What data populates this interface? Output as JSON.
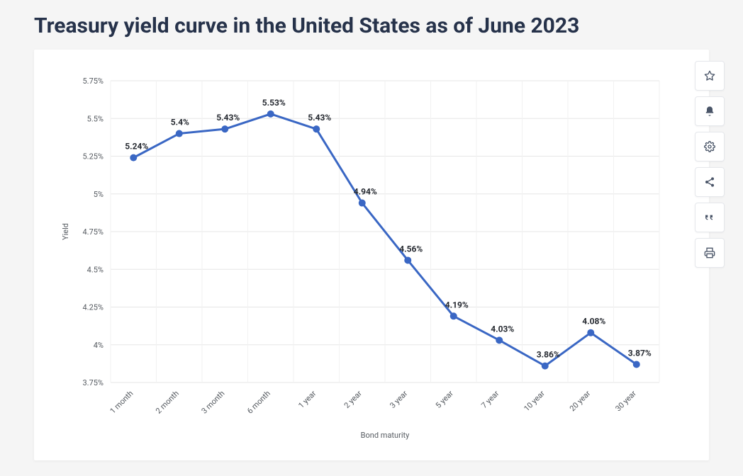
{
  "title": "Treasury yield curve in the United States as of June 2023",
  "chart": {
    "type": "line",
    "xlabel": "Bond maturity",
    "ylabel": "Yield",
    "categories": [
      "1 month",
      "2 month",
      "3 month",
      "6 month",
      "1 year",
      "2 year",
      "3 year",
      "5 year",
      "7 year",
      "10 year",
      "20 year",
      "30 year"
    ],
    "values": [
      5.24,
      5.4,
      5.43,
      5.53,
      5.43,
      4.94,
      4.56,
      4.19,
      4.03,
      3.86,
      4.08,
      3.87
    ],
    "value_labels": [
      "5.24%",
      "5.4%",
      "5.43%",
      "5.53%",
      "5.43%",
      "4.94%",
      "4.56%",
      "4.19%",
      "4.03%",
      "3.86%",
      "4.08%",
      "3.87%"
    ],
    "ylim": [
      3.75,
      5.75
    ],
    "ytick_step": 0.25,
    "ytick_labels": [
      "3.75%",
      "4%",
      "4.25%",
      "4.5%",
      "4.75%",
      "5%",
      "5.25%",
      "5.5%",
      "5.75%"
    ],
    "line_color": "#3a67c4",
    "line_width": 3,
    "marker_size": 5,
    "marker_color": "#3a67c4",
    "grid_color": "#e6e6e6",
    "background_color": "#ffffff",
    "label_fontsize": 11,
    "data_label_fontsize": 12,
    "data_label_color": "#262a31",
    "axis_label_color": "#555a60",
    "xtick_rotation": -45
  },
  "toolbar": {
    "items": [
      {
        "name": "favorite",
        "icon": "star"
      },
      {
        "name": "notify",
        "icon": "bell"
      },
      {
        "name": "settings",
        "icon": "gear"
      },
      {
        "name": "share",
        "icon": "share"
      },
      {
        "name": "cite",
        "icon": "quote"
      },
      {
        "name": "print",
        "icon": "print"
      }
    ]
  }
}
